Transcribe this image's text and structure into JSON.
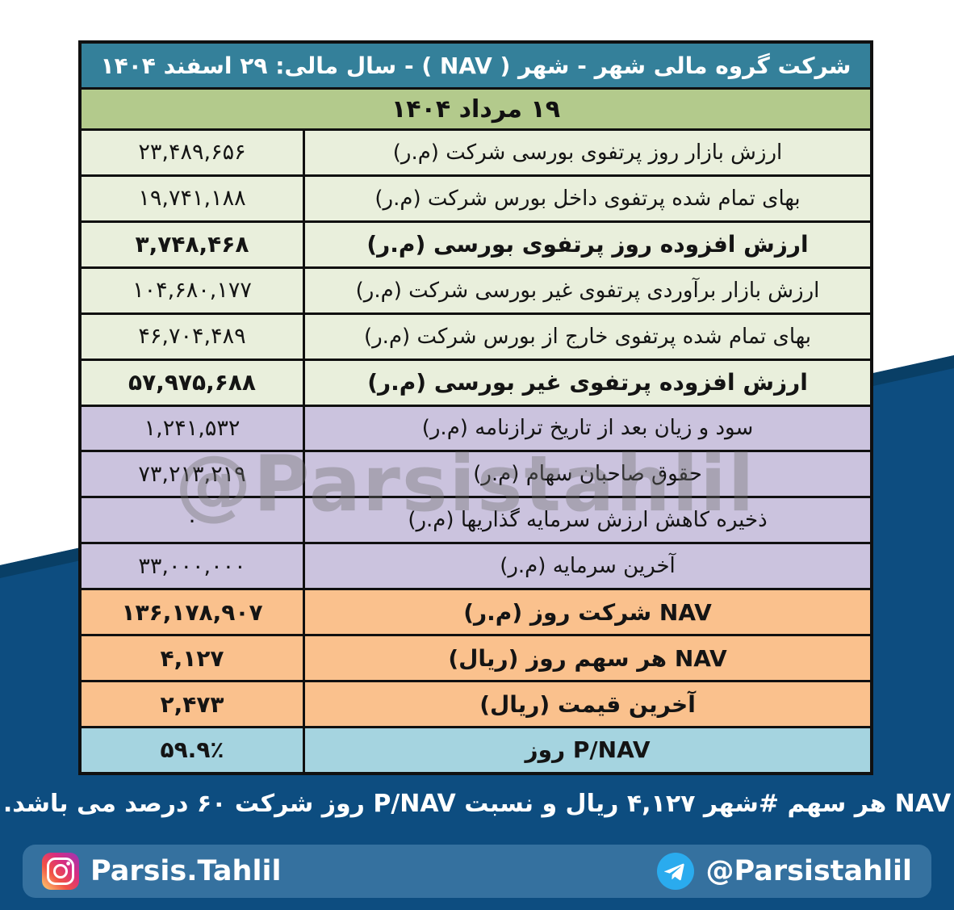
{
  "table": {
    "title": "شرکت گروه مالی شهر  - شهر ( NAV ) - سال مالی: ۲۹ اسفند ۱۴۰۴",
    "date": "۱۹ مرداد ۱۴۰۴",
    "rows": [
      {
        "label": "ارزش بازار روز پرتفوی بورسی شرکت (م.ر)",
        "value": "۲۳,۴۸۹,۶۵۶",
        "theme": "green",
        "bold": false
      },
      {
        "label": "بهای تمام شده پرتفوی داخل بورس شرکت (م.ر)",
        "value": "۱۹,۷۴۱,۱۸۸",
        "theme": "green",
        "bold": false
      },
      {
        "label": "ارزش افزوده روز پرتفوی بورسی (م.ر)",
        "value": "۳,۷۴۸,۴۶۸",
        "theme": "green",
        "bold": true
      },
      {
        "label": "ارزش بازار برآوردی پرتفوی غیر بورسی شرکت (م.ر)",
        "value": "۱۰۴,۶۸۰,۱۷۷",
        "theme": "green",
        "bold": false
      },
      {
        "label": "بهای تمام شده پرتفوی خارج از بورس شرکت (م.ر)",
        "value": "۴۶,۷۰۴,۴۸۹",
        "theme": "green",
        "bold": false
      },
      {
        "label": "ارزش افزوده پرتفوی غیر بورسی (م.ر)",
        "value": "۵۷,۹۷۵,۶۸۸",
        "theme": "green",
        "bold": true
      },
      {
        "label": "سود و زیان بعد از تاریخ ترازنامه (م.ر)",
        "value": "۱,۲۴۱,۵۳۲",
        "theme": "purple",
        "bold": false
      },
      {
        "label": "حقوق صاحبان سهام (م.ر)",
        "value": "۷۳,۲۱۳,۲۱۹",
        "theme": "purple",
        "bold": false
      },
      {
        "label": "ذخیره کاهش ارزش سرمایه گذاریها (م.ر)",
        "value": "۰",
        "theme": "purple",
        "bold": false
      },
      {
        "label": "آخرین سرمایه (م.ر)",
        "value": "۳۳,۰۰۰,۰۰۰",
        "theme": "purple",
        "bold": false
      },
      {
        "label": "NAV  شرکت روز (م.ر)",
        "value": "۱۳۶,۱۷۸,۹۰۷",
        "theme": "orange",
        "bold": true
      },
      {
        "label": "NAV هر سهم روز (ریال)",
        "value": "۴,۱۲۷",
        "theme": "orange",
        "bold": true
      },
      {
        "label": "آخرین قیمت (ریال)",
        "value": "۲,۴۷۳",
        "theme": "orange",
        "bold": true
      },
      {
        "label": "P/NAV روز",
        "value": "۵۹.۹٪",
        "theme": "blue",
        "bold": true
      }
    ]
  },
  "watermark": "@Parsistahlil",
  "footer": "NAV هر سهم #شهر ۴,۱۲۷ ریال و نسبت P/NAV روز شرکت ۶۰ درصد می باشد.",
  "social": {
    "instagram": "Parsis.Tahlil",
    "telegram": "@Parsistahlil"
  },
  "colors": {
    "header_bg": "#34809A",
    "date_bg": "#B3CA8C",
    "row_green": "#E9EFDC",
    "row_purple": "#CBC3DE",
    "row_orange": "#FAC18D",
    "row_blue": "#A5D4E0",
    "background_blue": "#0D4D80",
    "social_bar_blue": "#35719F",
    "telegram_blue": "#2AABEE"
  }
}
